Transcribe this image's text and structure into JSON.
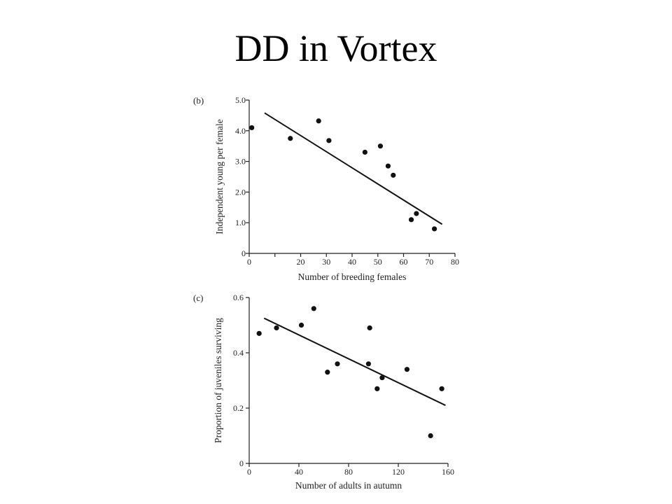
{
  "slide": {
    "title": "DD in Vortex"
  },
  "chart_data": [
    {
      "type": "scatter",
      "panel_label": "(b)",
      "xlabel": "Number of breeding females",
      "ylabel": "Independent young per female",
      "xlim": [
        0,
        80
      ],
      "ylim": [
        0,
        5.0
      ],
      "x_ticks": [
        0,
        10,
        20,
        30,
        40,
        50,
        60,
        70,
        80
      ],
      "x_tick_labels": [
        "0",
        "",
        "20",
        "30",
        "40",
        "50",
        "60",
        "70",
        "80"
      ],
      "y_ticks": [
        0,
        1,
        2,
        3,
        4,
        5
      ],
      "y_tick_labels": [
        "0",
        "1.0",
        "2.0",
        "3.0",
        "4.0",
        "5.0"
      ],
      "points": [
        {
          "x": 1,
          "y": 4.1
        },
        {
          "x": 16,
          "y": 3.75
        },
        {
          "x": 27,
          "y": 4.32
        },
        {
          "x": 31,
          "y": 3.68
        },
        {
          "x": 45,
          "y": 3.3
        },
        {
          "x": 51,
          "y": 3.5
        },
        {
          "x": 54,
          "y": 2.85
        },
        {
          "x": 56,
          "y": 2.55
        },
        {
          "x": 63,
          "y": 1.1
        },
        {
          "x": 65,
          "y": 1.3
        },
        {
          "x": 72,
          "y": 0.8
        }
      ],
      "trend_line": {
        "x": [
          6,
          75
        ],
        "y": [
          4.58,
          0.95
        ]
      },
      "grid": false
    },
    {
      "type": "scatter",
      "panel_label": "(c)",
      "xlabel": "Number of adults in autumn",
      "ylabel": "Proportion of juveniles surviving",
      "xlim": [
        0,
        160
      ],
      "ylim": [
        0,
        0.6
      ],
      "x_ticks": [
        0,
        40,
        80,
        120,
        160
      ],
      "x_tick_labels": [
        "0",
        "40",
        "80",
        "120",
        "160"
      ],
      "y_ticks": [
        0,
        0.2,
        0.4,
        0.6
      ],
      "y_tick_labels": [
        "0",
        "0.2",
        "0.4",
        "0.6"
      ],
      "points": [
        {
          "x": 8,
          "y": 0.47
        },
        {
          "x": 22,
          "y": 0.49
        },
        {
          "x": 42,
          "y": 0.5
        },
        {
          "x": 52,
          "y": 0.56
        },
        {
          "x": 63,
          "y": 0.33
        },
        {
          "x": 71,
          "y": 0.36
        },
        {
          "x": 96,
          "y": 0.36
        },
        {
          "x": 97,
          "y": 0.49
        },
        {
          "x": 103,
          "y": 0.27
        },
        {
          "x": 107,
          "y": 0.31
        },
        {
          "x": 127,
          "y": 0.34
        },
        {
          "x": 146,
          "y": 0.1
        },
        {
          "x": 155,
          "y": 0.27
        }
      ],
      "trend_line": {
        "x": [
          12,
          158
        ],
        "y": [
          0.525,
          0.21
        ]
      },
      "grid": false
    }
  ]
}
